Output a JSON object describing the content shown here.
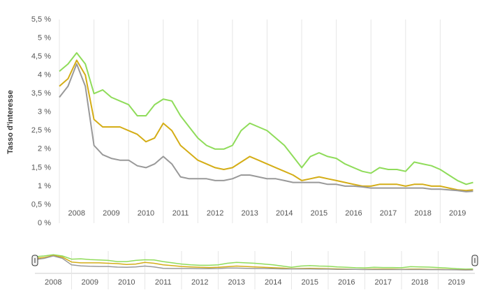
{
  "chart_data": {
    "type": "line",
    "y_label": "Tasso d'interesse",
    "x": [
      2008,
      2008.25,
      2008.5,
      2008.75,
      2009,
      2009.25,
      2009.5,
      2009.75,
      2010,
      2010.25,
      2010.5,
      2010.75,
      2011,
      2011.25,
      2011.5,
      2011.75,
      2012,
      2012.25,
      2012.5,
      2012.75,
      2013,
      2013.25,
      2013.5,
      2013.75,
      2014,
      2014.25,
      2014.5,
      2014.75,
      2015,
      2015.25,
      2015.5,
      2015.75,
      2016,
      2016.25,
      2016.5,
      2016.75,
      2017,
      2017.25,
      2017.5,
      2017.75,
      2018,
      2018.25,
      2018.5,
      2018.75,
      2019,
      2019.25,
      2019.5,
      2019.75,
      2019.95
    ],
    "series": [
      {
        "color": "#8fdc5a",
        "values": [
          4.1,
          4.3,
          4.6,
          4.3,
          3.5,
          3.6,
          3.4,
          3.3,
          3.2,
          2.9,
          2.9,
          3.2,
          3.35,
          3.3,
          2.9,
          2.6,
          2.3,
          2.1,
          2.0,
          2.0,
          2.1,
          2.5,
          2.7,
          2.6,
          2.5,
          2.3,
          2.1,
          1.8,
          1.5,
          1.8,
          1.9,
          1.8,
          1.75,
          1.6,
          1.5,
          1.4,
          1.35,
          1.5,
          1.45,
          1.45,
          1.4,
          1.65,
          1.6,
          1.55,
          1.45,
          1.3,
          1.15,
          1.05,
          1.1
        ]
      },
      {
        "color": "#d4ad16",
        "values": [
          3.7,
          3.9,
          4.4,
          4.0,
          2.8,
          2.6,
          2.6,
          2.6,
          2.5,
          2.4,
          2.2,
          2.3,
          2.7,
          2.5,
          2.1,
          1.9,
          1.7,
          1.6,
          1.5,
          1.45,
          1.5,
          1.65,
          1.8,
          1.7,
          1.6,
          1.5,
          1.4,
          1.3,
          1.15,
          1.2,
          1.25,
          1.2,
          1.15,
          1.1,
          1.05,
          1.0,
          1.0,
          1.05,
          1.05,
          1.05,
          1.0,
          1.05,
          1.05,
          1.0,
          1.0,
          0.95,
          0.9,
          0.88,
          0.9
        ]
      },
      {
        "color": "#999999",
        "values": [
          3.4,
          3.7,
          4.3,
          3.7,
          2.1,
          1.85,
          1.75,
          1.7,
          1.7,
          1.55,
          1.5,
          1.6,
          1.8,
          1.6,
          1.25,
          1.2,
          1.2,
          1.2,
          1.15,
          1.15,
          1.2,
          1.3,
          1.3,
          1.25,
          1.2,
          1.2,
          1.15,
          1.1,
          1.1,
          1.1,
          1.1,
          1.05,
          1.05,
          1.0,
          1.0,
          0.98,
          0.95,
          0.95,
          0.95,
          0.95,
          0.95,
          0.95,
          0.95,
          0.92,
          0.92,
          0.9,
          0.88,
          0.85,
          0.86
        ]
      }
    ],
    "xlim": [
      2008,
      2020
    ],
    "xticks": [
      2008,
      2009,
      2010,
      2011,
      2012,
      2013,
      2014,
      2015,
      2016,
      2017,
      2018,
      2019
    ],
    "ylim": [
      0,
      5.5
    ],
    "yticks": [
      {
        "value": 0,
        "label": "0 %"
      },
      {
        "value": 0.5,
        "label": "0,5 %"
      },
      {
        "value": 1,
        "label": "1 %"
      },
      {
        "value": 1.5,
        "label": "1,5 %"
      },
      {
        "value": 2,
        "label": "2 %"
      },
      {
        "value": 2.5,
        "label": "2,5 %"
      },
      {
        "value": 3,
        "label": "3 %"
      },
      {
        "value": 3.5,
        "label": "3,5 %"
      },
      {
        "value": 4,
        "label": "4 %"
      },
      {
        "value": 4.5,
        "label": "4,5 %"
      },
      {
        "value": 5,
        "label": "5 %"
      },
      {
        "value": 5.5,
        "label": "5,5 %"
      }
    ],
    "grid": "x"
  }
}
